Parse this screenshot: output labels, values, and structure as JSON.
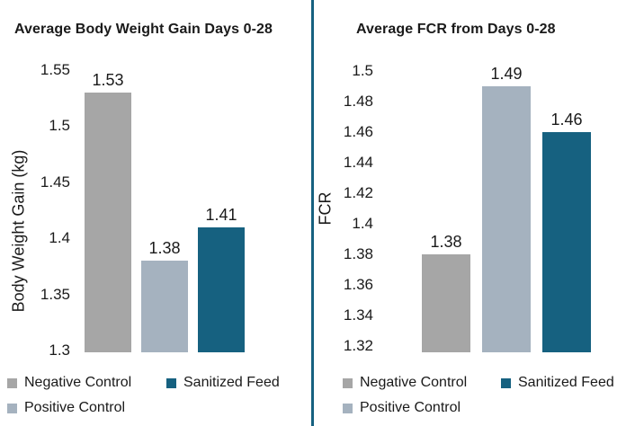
{
  "page": {
    "background": "#ffffff",
    "text_color": "#1a1a1a",
    "divider_color": "#166180"
  },
  "series_colors": {
    "negative_control": "#a6a6a6",
    "positive_control": "#a5b2bf",
    "sanitized_feed": "#166180"
  },
  "chart_data": [
    {
      "type": "bar",
      "title": "Average Body Weight Gain Days 0-28",
      "xlabel": "",
      "ylabel": "Body Weight Gain (kg)",
      "categories": [
        "Negative Control",
        "Positive Control",
        "Sanitized Feed"
      ],
      "values": [
        1.53,
        1.38,
        1.41
      ],
      "data_labels": [
        "1.53",
        "1.38",
        "1.41"
      ],
      "bar_colors": [
        "#a6a6a6",
        "#a5b2bf",
        "#166180"
      ],
      "ylim": [
        1.3,
        1.55
      ],
      "ytick_values": [
        1.55,
        1.5,
        1.45,
        1.4,
        1.35,
        1.3
      ],
      "ytick_labels": [
        "1.55",
        "1.5",
        "1.45",
        "1.4",
        "1.35",
        "1.3"
      ],
      "grid": false,
      "legend_position": "bottom",
      "legend": [
        {
          "label": "Negative Control",
          "color": "#a6a6a6"
        },
        {
          "label": "Positive Control",
          "color": "#a5b2bf"
        },
        {
          "label": "Sanitized Feed",
          "color": "#166180"
        }
      ]
    },
    {
      "type": "bar",
      "title": "Average FCR from Days 0-28",
      "xlabel": "",
      "ylabel": "FCR",
      "categories": [
        "Negative Control",
        "Positive Control",
        "Sanitized Feed"
      ],
      "values": [
        1.38,
        1.49,
        1.46
      ],
      "data_labels": [
        "1.38",
        "1.49",
        "1.46"
      ],
      "bar_colors": [
        "#a6a6a6",
        "#a5b2bf",
        "#166180"
      ],
      "ylim": [
        1.32,
        1.5
      ],
      "ytick_values": [
        1.5,
        1.48,
        1.46,
        1.44,
        1.42,
        1.4,
        1.38,
        1.36,
        1.34,
        1.32
      ],
      "ytick_labels": [
        "1.5",
        "1.48",
        "1.46",
        "1.44",
        "1.42",
        "1.4",
        "1.38",
        "1.36",
        "1.34",
        "1.32"
      ],
      "grid": false,
      "legend_position": "bottom",
      "legend": [
        {
          "label": "Negative Control",
          "color": "#a6a6a6"
        },
        {
          "label": "Positive Control",
          "color": "#a5b2bf"
        },
        {
          "label": "Sanitized Feed",
          "color": "#166180"
        }
      ]
    }
  ]
}
